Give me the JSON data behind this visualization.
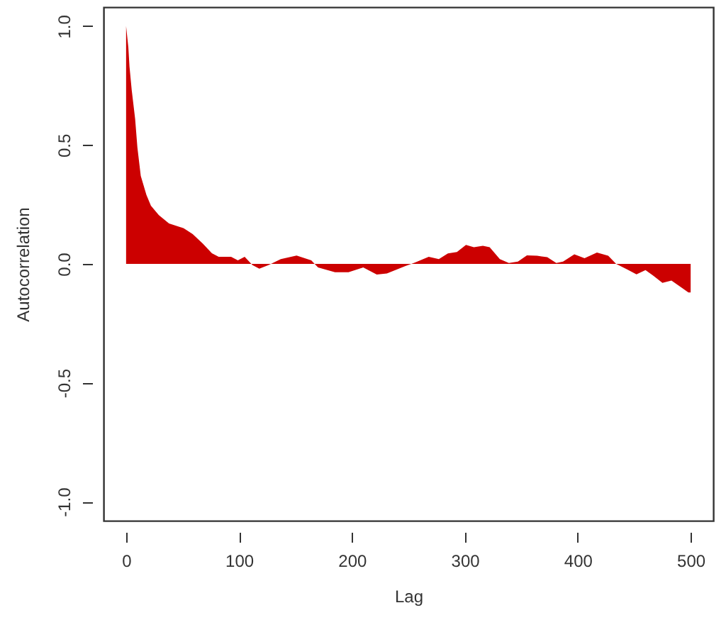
{
  "chart_data": {
    "type": "area",
    "xlabel": "Lag",
    "ylabel": "Autocorrelation",
    "xlim": [
      -20,
      520
    ],
    "xticks": [
      0,
      100,
      200,
      300,
      400,
      500
    ],
    "ylim": [
      -1.08,
      1.08
    ],
    "yticks": [
      {
        "value": -1,
        "label": "-1.0"
      },
      {
        "value": -0.5,
        "label": "-0.5"
      },
      {
        "value": 0,
        "label": "0.0"
      },
      {
        "value": 0.5,
        "label": "0.5"
      },
      {
        "value": 1,
        "label": "1.0"
      }
    ],
    "grid": false,
    "series": [
      {
        "color": "#cc0000",
        "x": [
          0,
          2,
          3,
          5,
          8,
          10,
          13,
          18,
          22,
          29,
          38,
          51,
          59,
          68,
          76,
          82,
          93,
          99,
          105,
          112,
          118,
          126,
          137,
          151,
          164,
          170,
          185,
          197,
          210,
          222,
          231,
          247,
          256,
          268,
          277,
          285,
          293,
          301,
          308,
          316,
          322,
          331,
          339,
          347,
          355,
          364,
          373,
          381,
          387,
          397,
          406,
          417,
          427,
          434,
          444,
          452,
          460,
          467,
          475,
          483,
          492,
          498,
          500
        ],
        "values": [
          1.0,
          0.91,
          0.83,
          0.73,
          0.61,
          0.49,
          0.37,
          0.29,
          0.245,
          0.205,
          0.17,
          0.15,
          0.125,
          0.085,
          0.045,
          0.03,
          0.03,
          0.015,
          0.03,
          -0.005,
          -0.02,
          -0.005,
          0.02,
          0.035,
          0.015,
          -0.015,
          -0.035,
          -0.035,
          -0.015,
          -0.045,
          -0.04,
          -0.01,
          0.006,
          0.03,
          0.02,
          0.044,
          0.05,
          0.08,
          0.07,
          0.076,
          0.07,
          0.02,
          0.004,
          0.01,
          0.036,
          0.034,
          0.028,
          0.004,
          0.01,
          0.04,
          0.024,
          0.048,
          0.034,
          0,
          -0.024,
          -0.044,
          -0.026,
          -0.05,
          -0.08,
          -0.07,
          -0.1,
          -0.12,
          -0.12
        ]
      }
    ]
  }
}
